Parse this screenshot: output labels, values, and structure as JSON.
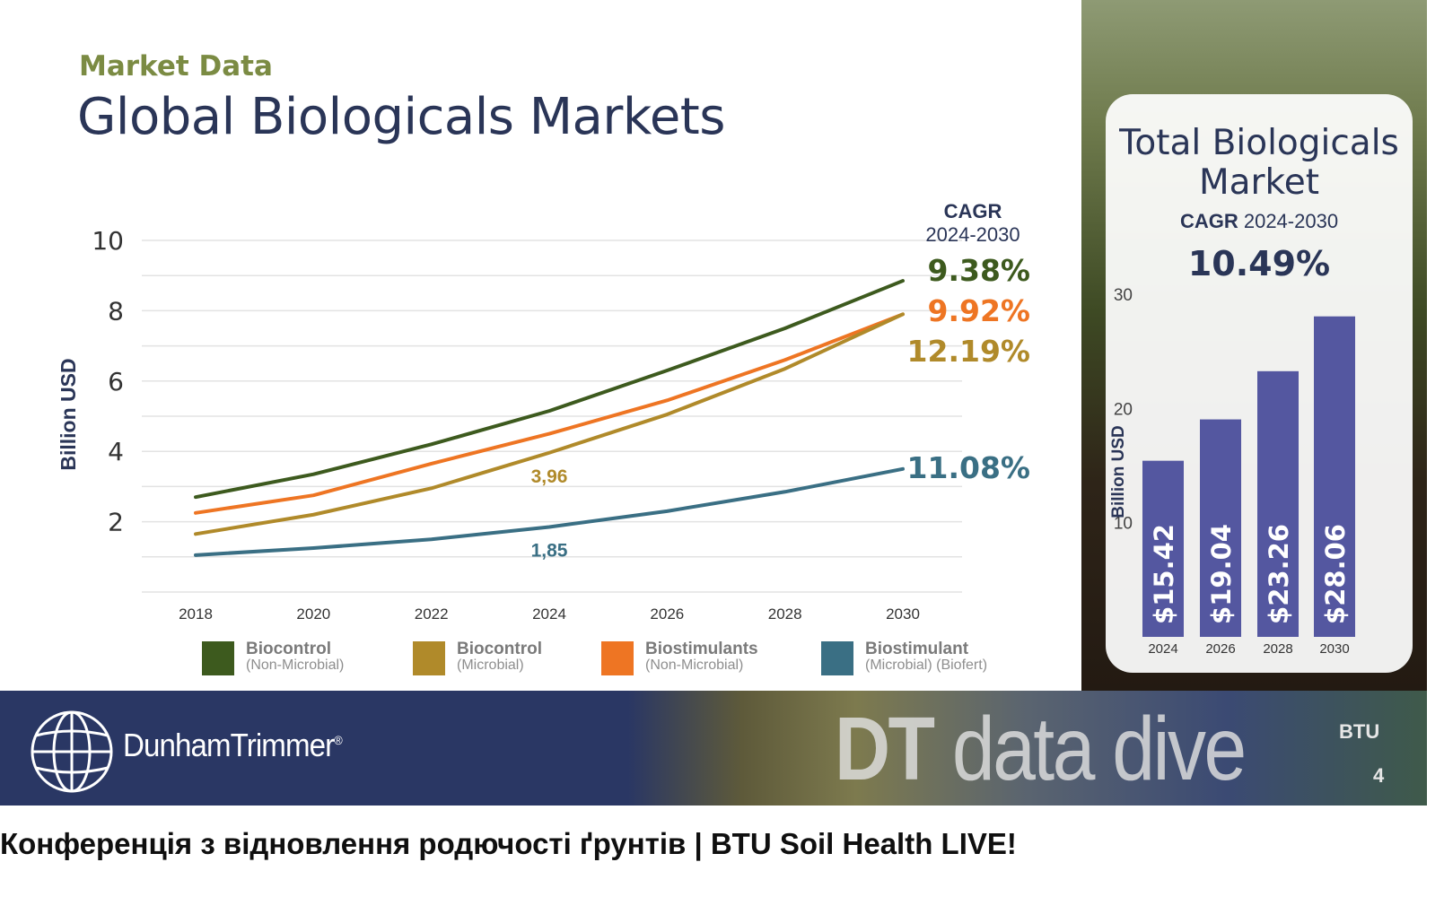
{
  "slide": {
    "kicker": "Market Data",
    "title": "Global Biologicals Markets",
    "brand": "DunhamTrimmer",
    "brand_mark": "®",
    "banner_dt": "DT",
    "banner_dive": "data dive",
    "btu": "BTU",
    "slide_number": "4"
  },
  "video": {
    "title": "Конференція з відновлення родючості ґрунтів | BTU Soil Health LIVE!"
  },
  "legend": [
    {
      "name": "Biocontrol",
      "sub": "(Non-Microbial)",
      "color": "#3d5a1e"
    },
    {
      "name": "Biocontrol",
      "sub": "(Microbial)",
      "color": "#b08a2a"
    },
    {
      "name": "Biostimulants",
      "sub": "(Non-Microbial)",
      "color": "#ee7523"
    },
    {
      "name": "Biostimulant",
      "sub": "(Microbial) (Biofert)",
      "color": "#3a6f84"
    }
  ],
  "chart_data": [
    {
      "type": "line",
      "ylabel": "Billion USD",
      "ylim": [
        0,
        10
      ],
      "yticks": [
        2,
        4,
        6,
        8,
        10
      ],
      "xlim": [
        2018,
        2030
      ],
      "xticks": [
        2018,
        2020,
        2022,
        2024,
        2026,
        2028,
        2030
      ],
      "cagr_header": [
        "CAGR",
        "2024-2030"
      ],
      "grid": true,
      "series": [
        {
          "x": [
            2018,
            2020,
            2022,
            2024,
            2026,
            2028,
            2030
          ],
          "values": [
            2.7,
            3.35,
            4.2,
            5.15,
            6.3,
            7.5,
            8.85
          ],
          "color": "#3d5a1e",
          "cagr": "9.38%"
        },
        {
          "x": [
            2018,
            2020,
            2022,
            2024,
            2026,
            2028,
            2030
          ],
          "values": [
            2.25,
            2.75,
            3.65,
            4.5,
            5.45,
            6.6,
            7.9
          ],
          "color": "#ee7523",
          "cagr": "9.92%"
        },
        {
          "x": [
            2018,
            2020,
            2022,
            2024,
            2026,
            2028,
            2030
          ],
          "values": [
            1.65,
            2.2,
            2.95,
            3.96,
            5.05,
            6.35,
            7.9
          ],
          "color": "#b08a2a",
          "cagr": "12.19%"
        },
        {
          "x": [
            2018,
            2020,
            2022,
            2024,
            2026,
            2028,
            2030
          ],
          "values": [
            1.05,
            1.25,
            1.5,
            1.85,
            2.3,
            2.85,
            3.5
          ],
          "color": "#3a6f84",
          "cagr": "11.08%"
        }
      ],
      "annotations": [
        {
          "x": 2024,
          "y": 3.96,
          "text": "3,96",
          "color": "#b08a2a"
        },
        {
          "x": 2024,
          "y": 1.85,
          "text": "1,85",
          "color": "#3a6f84"
        }
      ]
    },
    {
      "type": "bar",
      "title": "Total Biologicals Market",
      "cagr_label": "CAGR",
      "cagr_period": "2024-2030",
      "cagr_value": "10.49%",
      "ylabel": "Billion USD",
      "ylim": [
        0,
        30
      ],
      "yticks": [
        10,
        20,
        30
      ],
      "categories": [
        "2024",
        "2026",
        "2028",
        "2030"
      ],
      "values": [
        15.42,
        19.04,
        23.26,
        28.06
      ],
      "value_labels": [
        "$15.42",
        "$19.04",
        "$23.26",
        "$28.06"
      ],
      "color": "#5457a0"
    }
  ]
}
